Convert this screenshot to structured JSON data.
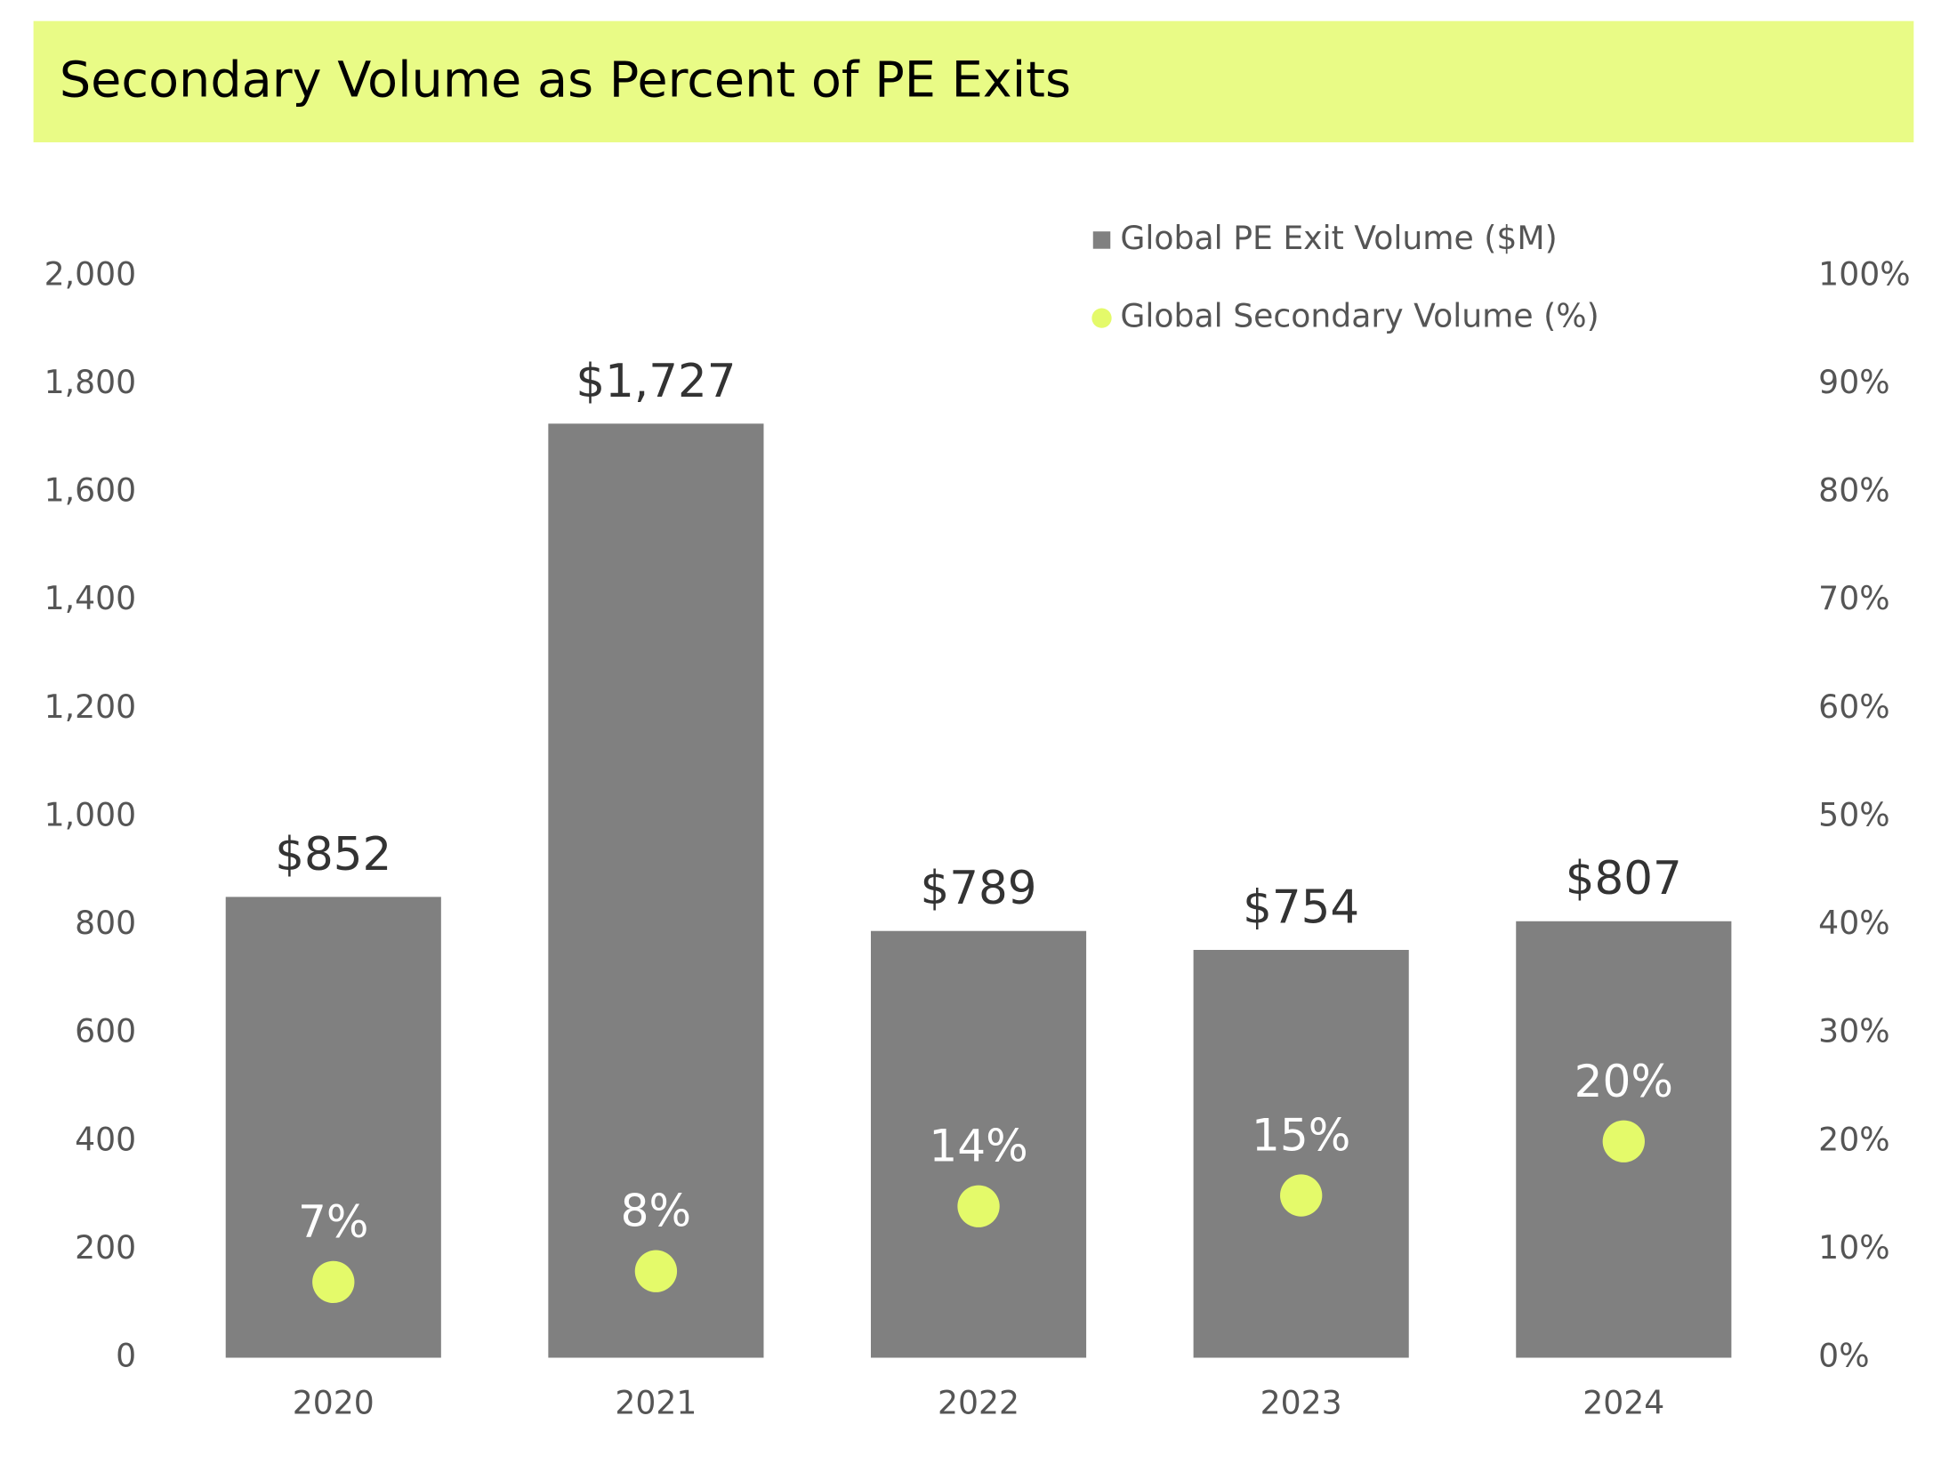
{
  "chart_data": {
    "type": "bar",
    "title": "Secondary Volume as Percent of PE Exits",
    "categories": [
      "2020",
      "2021",
      "2022",
      "2023",
      "2024"
    ],
    "series": [
      {
        "name": "Global PE Exit Volume ($M)",
        "color": "#808080",
        "values": [
          852,
          1727,
          789,
          754,
          807
        ],
        "value_labels": [
          "$852",
          "$1,727",
          "$789",
          "$754",
          "$807"
        ]
      },
      {
        "name": "Global Secondary Volume (%)",
        "color": "#e4fa6a",
        "axis": "y2",
        "values": [
          7,
          8,
          14,
          15,
          20
        ],
        "value_labels": [
          "7%",
          "8%",
          "14%",
          "15%",
          "20%"
        ]
      }
    ],
    "ylim": [
      0,
      2000
    ],
    "yticks": [
      0,
      200,
      400,
      600,
      800,
      {
        "value": 1000,
        "label": "1,000"
      },
      {
        "value": 1200,
        "label": "1,200"
      },
      {
        "value": 1400,
        "label": "1,400"
      },
      {
        "value": 1600,
        "label": "1,600"
      },
      {
        "value": 1800,
        "label": "1,800"
      },
      {
        "value": 2000,
        "label": "2,000"
      }
    ],
    "y2lim": [
      0,
      100
    ],
    "y2ticks": [
      {
        "value": 0,
        "label": "0%"
      },
      {
        "value": 10,
        "label": "10%"
      },
      {
        "value": 20,
        "label": "20%"
      },
      {
        "value": 30,
        "label": "30%"
      },
      {
        "value": 40,
        "label": "40%"
      },
      {
        "value": 50,
        "label": "50%"
      },
      {
        "value": 60,
        "label": "60%"
      },
      {
        "value": 70,
        "label": "70%"
      },
      {
        "value": 80,
        "label": "80%"
      },
      {
        "value": 90,
        "label": "90%"
      },
      {
        "value": 100,
        "label": "100%"
      }
    ],
    "grid": false,
    "legend": "top-right"
  }
}
